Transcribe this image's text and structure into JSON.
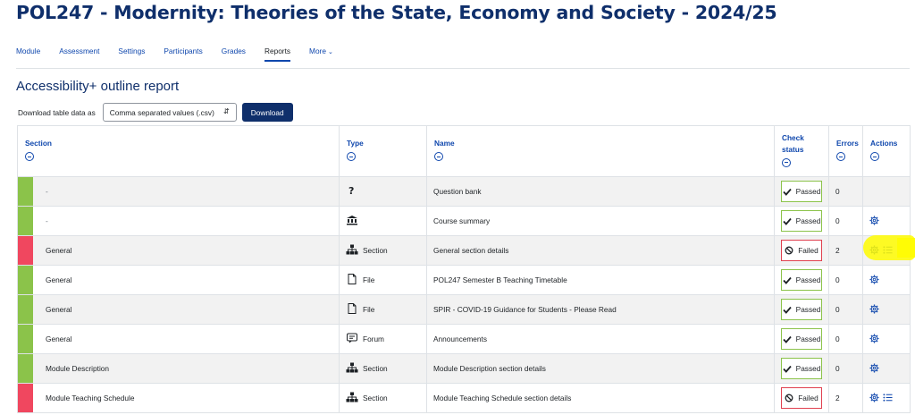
{
  "page": {
    "title": "POL247 - Modernity: Theories of the State, Economy and Society - 2024/25"
  },
  "nav": {
    "tabs": [
      {
        "label": "Module"
      },
      {
        "label": "Assessment"
      },
      {
        "label": "Settings"
      },
      {
        "label": "Participants"
      },
      {
        "label": "Grades"
      },
      {
        "label": "Reports"
      },
      {
        "label": "More"
      }
    ],
    "active": "Reports"
  },
  "report": {
    "title": "Accessibility+ outline report",
    "download_label": "Download table data as",
    "format_selected": "Comma separated values (.csv)",
    "download_button": "Download"
  },
  "table": {
    "headers": {
      "section": "Section",
      "type": "Type",
      "name": "Name",
      "check_status": "Check status",
      "errors": "Errors",
      "actions": "Actions"
    },
    "rows": [
      {
        "status": "passed",
        "section": "-",
        "type_icon": "question-icon",
        "type": "",
        "name": "Question bank",
        "check": "Passed",
        "errors": "0",
        "actions": []
      },
      {
        "status": "passed",
        "section": "-",
        "type_icon": "institution-icon",
        "type": "",
        "name": "Course summary",
        "check": "Passed",
        "errors": "0",
        "actions": [
          "gear-icon"
        ]
      },
      {
        "status": "failed",
        "section": "General",
        "type_icon": "sitemap-icon",
        "type": "Section",
        "name": "General section details",
        "check": "Failed",
        "errors": "2",
        "actions": [
          "gear-icon",
          "list-icon"
        ]
      },
      {
        "status": "passed",
        "section": "General",
        "type_icon": "file-icon",
        "type": "File",
        "name": "POL247 Semester B Teaching Timetable",
        "check": "Passed",
        "errors": "0",
        "actions": [
          "gear-icon"
        ]
      },
      {
        "status": "passed",
        "section": "General",
        "type_icon": "file-icon",
        "type": "File",
        "name": "SPIR - COVID-19 Guidance for Students - Please Read",
        "check": "Passed",
        "errors": "0",
        "actions": [
          "gear-icon"
        ]
      },
      {
        "status": "passed",
        "section": "General",
        "type_icon": "forum-icon",
        "type": "Forum",
        "name": "Announcements",
        "check": "Passed",
        "errors": "0",
        "actions": [
          "gear-icon"
        ]
      },
      {
        "status": "passed",
        "section": "Module Description",
        "type_icon": "sitemap-icon",
        "type": "Section",
        "name": "Module Description section details",
        "check": "Passed",
        "errors": "0",
        "actions": [
          "gear-icon"
        ]
      },
      {
        "status": "failed",
        "section": "Module Teaching Schedule",
        "type_icon": "sitemap-icon",
        "type": "Section",
        "name": "Module Teaching Schedule section details",
        "check": "Failed",
        "errors": "2",
        "actions": [
          "gear-icon",
          "list-icon"
        ]
      }
    ]
  },
  "colors": {
    "title": "#0f2f6b",
    "link": "#0f47ad",
    "pass": "#8bc34a",
    "fail": "#f0475f",
    "highlight": "#fffb00"
  }
}
